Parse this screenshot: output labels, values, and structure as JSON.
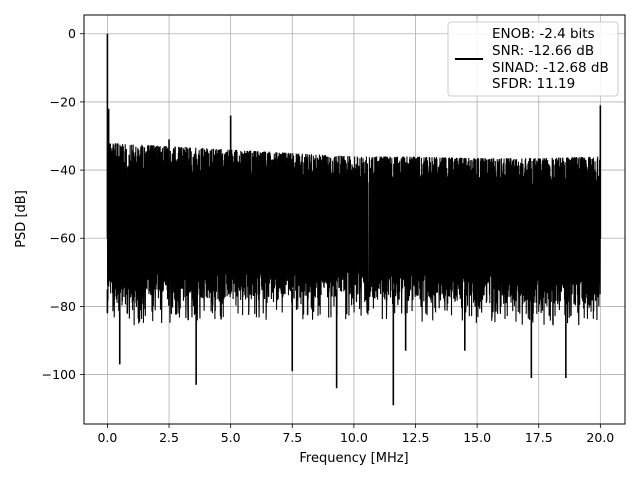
{
  "chart_data": {
    "type": "line",
    "xlabel": "Frequency [MHz]",
    "ylabel": "PSD [dB]",
    "xlim": [
      -0.95,
      21.0
    ],
    "ylim": [
      -114.5,
      5.5
    ],
    "xticks": [
      0.0,
      2.5,
      5.0,
      7.5,
      10.0,
      12.5,
      15.0,
      17.5,
      20.0
    ],
    "xtick_labels": [
      "0.0",
      "2.5",
      "5.0",
      "7.5",
      "10.0",
      "12.5",
      "15.0",
      "17.5",
      "20.0"
    ],
    "yticks": [
      0,
      -20,
      -40,
      -60,
      -80,
      -100
    ],
    "ytick_labels": [
      "0",
      "−20",
      "−40",
      "−60",
      "−80",
      "−100"
    ],
    "grid": true,
    "line_color": "#000000",
    "legend_position": "top-right",
    "legend": [
      "ENOB: -2.4 bits",
      "SNR: -12.66 dB",
      "SINAD: -12.68 dB",
      "SFDR: 11.19"
    ],
    "series": [
      {
        "values_description_free": true,
        "noise_floor": {
          "x_start": 0.0,
          "x_end": 20.0,
          "upper": [
            [
              0.0,
              -32
            ],
            [
              2.5,
              -33
            ],
            [
              5.0,
              -34
            ],
            [
              7.5,
              -35
            ],
            [
              10.0,
              -36
            ],
            [
              12.5,
              -36
            ],
            [
              15.0,
              -36.5
            ],
            [
              17.5,
              -36.5
            ],
            [
              20.0,
              -36
            ]
          ],
          "lower": [
            [
              0.0,
              -80
            ],
            [
              5.0,
              -78
            ],
            [
              10.0,
              -78
            ],
            [
              15.0,
              -79
            ],
            [
              20.0,
              -80
            ]
          ]
        },
        "peaks": [
          {
            "x": 0.0,
            "y": 0.0
          },
          {
            "x": 0.05,
            "y": -22
          },
          {
            "x": 2.5,
            "y": -31
          },
          {
            "x": 5.0,
            "y": -24
          },
          {
            "x": 20.0,
            "y": -21
          }
        ],
        "dips": [
          {
            "x": 0.0,
            "y": -82
          },
          {
            "x": 0.5,
            "y": -97
          },
          {
            "x": 3.6,
            "y": -103
          },
          {
            "x": 7.5,
            "y": -99
          },
          {
            "x": 9.3,
            "y": -104
          },
          {
            "x": 11.6,
            "y": -109
          },
          {
            "x": 12.1,
            "y": -93
          },
          {
            "x": 14.5,
            "y": -93
          },
          {
            "x": 17.2,
            "y": -101
          },
          {
            "x": 18.6,
            "y": -101
          }
        ]
      }
    ]
  }
}
